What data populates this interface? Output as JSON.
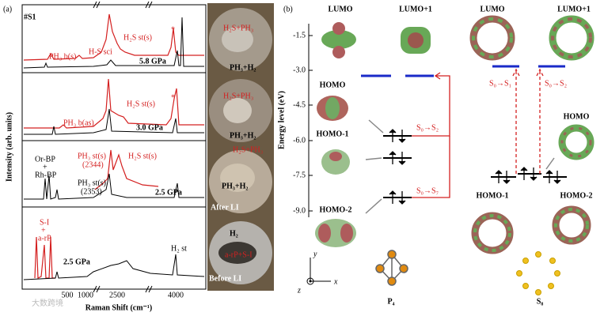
{
  "panel_a": {
    "label": "(a)",
    "sample": "#S1",
    "y_axis_label": "Intensity (arb. units)",
    "x_axis_label": "Raman Shift (cm⁻¹)",
    "x_ticks": [
      "500",
      "1000",
      "2500",
      "4000"
    ],
    "spectra": [
      {
        "pressure": "5.8 GPa",
        "annotations": [
          "PH₃ b(s)",
          "H-S sci",
          "H₂S st(s)",
          "*"
        ]
      },
      {
        "pressure": "3.0 GPa",
        "annotations": [
          "PH₃ b(as)",
          "H₂S st(s)",
          "*"
        ]
      },
      {
        "pressure": "2.5 GPa",
        "annotations": [
          "Or-BP",
          "+",
          "Rh-BP",
          "PH₃ st(s)",
          "(2344)",
          "H₂S st(s)",
          "PH₃ st(s)",
          "(2353)"
        ]
      },
      {
        "pressure": "2.5 GPa",
        "annotations": [
          "S-I",
          "+",
          "a-rP",
          "H₂ st"
        ]
      }
    ],
    "photos": [
      {
        "labels": [
          "H₂S+PH₃",
          "PH₃+H₂"
        ]
      },
      {
        "labels": [
          "H₂S+PH₃",
          "PH₃+H₂"
        ]
      },
      {
        "labels": [
          "H₂S+PH₃",
          "PH₃+H₂",
          "After LI"
        ]
      },
      {
        "labels": [
          "H₂",
          "a-rP+S-I",
          "Before LI"
        ]
      }
    ]
  },
  "panel_b": {
    "label": "(b)",
    "y_axis_label": "Energy level (eV)",
    "y_ticks": [
      "-1.5",
      "-3.0",
      "-4.5",
      "-6.0",
      "-7.5",
      "-9.0"
    ],
    "p4": {
      "name": "P₄",
      "orbitals": [
        "LUMO",
        "LUMO+1",
        "HOMO",
        "HOMO-1",
        "HOMO-2"
      ],
      "transitions": [
        "S₀→S₂",
        "S₀→S₇"
      ]
    },
    "s8": {
      "name": "S₈",
      "orbitals": [
        "LUMO",
        "LUMO+1",
        "HOMO",
        "HOMO-1",
        "HOMO-2"
      ],
      "transitions": [
        "S₀→S₁",
        "S₀→S₂"
      ]
    },
    "axes": [
      "y",
      "x",
      "z"
    ]
  },
  "watermark": "大数跨境"
}
